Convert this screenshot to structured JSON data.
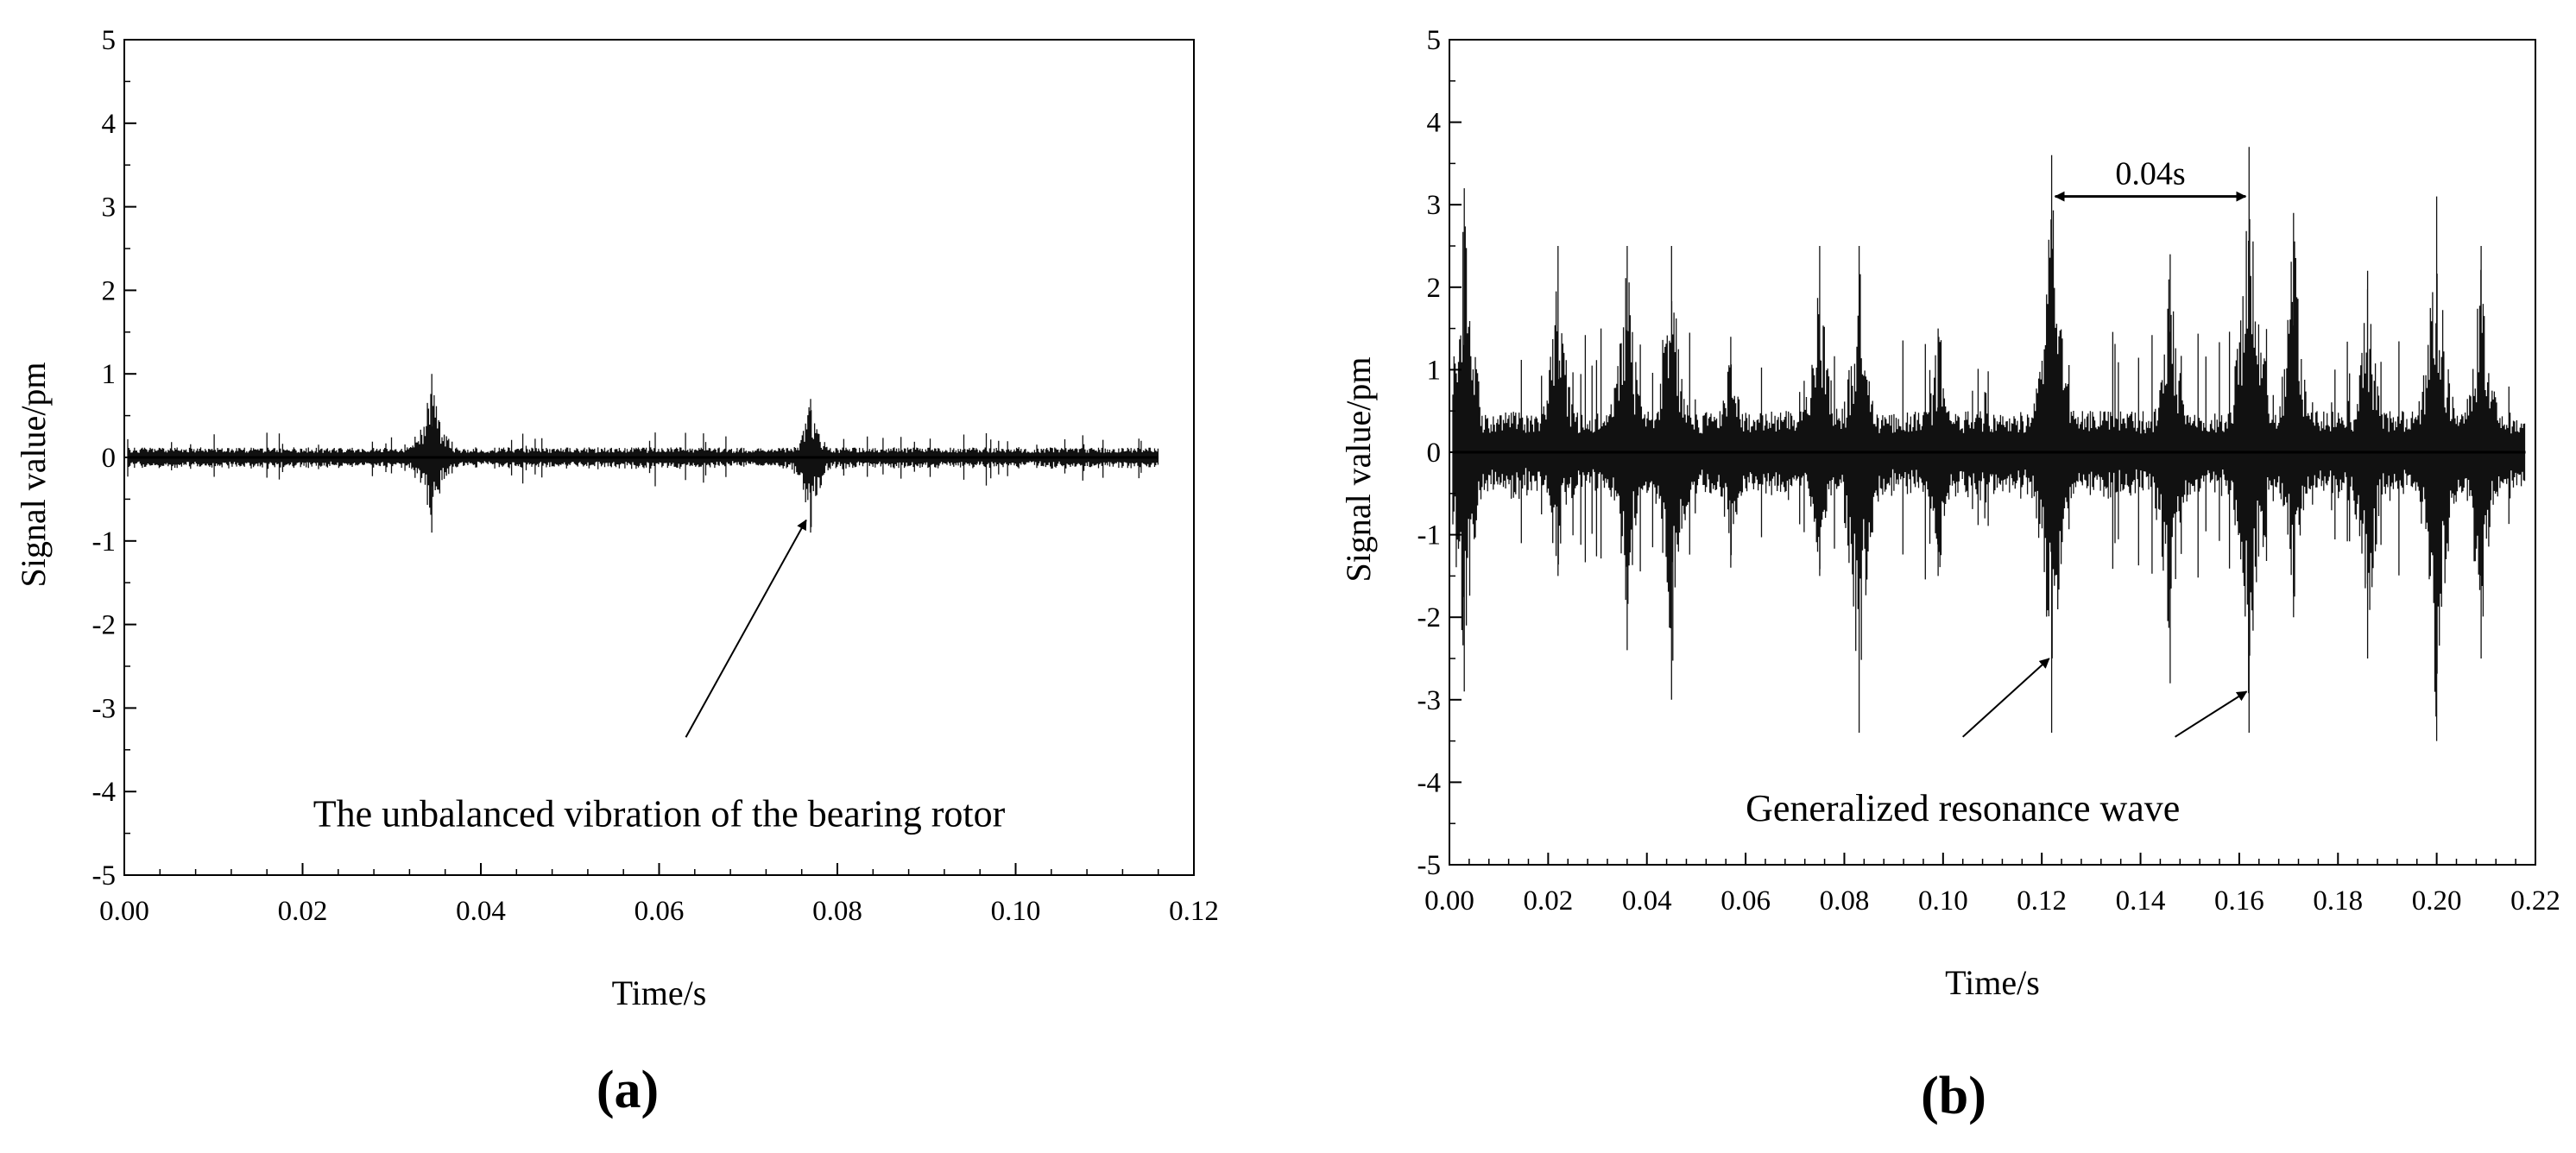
{
  "chart_data": [
    {
      "type": "line",
      "panel_label": "(a)",
      "xlabel": "Time/s",
      "ylabel": "Signal value/pm",
      "xlim": [
        0.0,
        0.12
      ],
      "ylim": [
        -5,
        5
      ],
      "x_ticks": [
        "0.00",
        "0.02",
        "0.04",
        "0.06",
        "0.08",
        "0.10",
        "0.12"
      ],
      "y_ticks": [
        "5",
        "4",
        "3",
        "2",
        "1",
        "0",
        "-1",
        "-2",
        "-3",
        "-4",
        "-5"
      ],
      "grid": false,
      "signal": {
        "t_end": 0.116,
        "base_amplitude": 0.12,
        "burst_amplitude": 0.3,
        "peaks": [
          {
            "t": 0.0345,
            "max": 1.0,
            "min": -0.9
          },
          {
            "t": 0.077,
            "max": 0.7,
            "min": -0.9
          }
        ]
      },
      "annotations": [
        {
          "text": "The unbalanced vibration of the bearing rotor",
          "text_x": 0.06,
          "text_y": -4.25,
          "arrow_from": [
            0.063,
            -3.35
          ],
          "arrow_to": [
            0.0765,
            -0.75
          ]
        }
      ]
    },
    {
      "type": "line",
      "panel_label": "(b)",
      "xlabel": "Time/s",
      "ylabel": "Signal value/pm",
      "xlim": [
        0.0,
        0.22
      ],
      "ylim": [
        -5,
        5
      ],
      "x_ticks": [
        "0.00",
        "0.02",
        "0.04",
        "0.06",
        "0.08",
        "0.10",
        "0.12",
        "0.14",
        "0.16",
        "0.18",
        "0.20",
        "0.22"
      ],
      "y_ticks": [
        "5",
        "4",
        "3",
        "2",
        "1",
        "0",
        "-1",
        "-2",
        "-3",
        "-4",
        "-5"
      ],
      "grid": false,
      "signal": {
        "t_end": 0.218,
        "base_amplitude": 0.5,
        "burst_amplitude": 1.5,
        "peaks": [
          {
            "t": 0.003,
            "max": 3.2,
            "min": -2.9
          },
          {
            "t": 0.022,
            "max": 2.5,
            "min": -1.5
          },
          {
            "t": 0.036,
            "max": 2.5,
            "min": -2.4
          },
          {
            "t": 0.045,
            "max": 2.5,
            "min": -3.0
          },
          {
            "t": 0.057,
            "max": 1.4,
            "min": -1.4
          },
          {
            "t": 0.075,
            "max": 2.5,
            "min": -1.5
          },
          {
            "t": 0.083,
            "max": 2.5,
            "min": -3.4
          },
          {
            "t": 0.099,
            "max": 1.5,
            "min": -1.5
          },
          {
            "t": 0.122,
            "max": 3.6,
            "min": -3.4
          },
          {
            "t": 0.146,
            "max": 2.4,
            "min": -2.8
          },
          {
            "t": 0.162,
            "max": 3.7,
            "min": -3.4
          },
          {
            "t": 0.171,
            "max": 2.9,
            "min": -2.0
          },
          {
            "t": 0.186,
            "max": 2.2,
            "min": -2.5
          },
          {
            "t": 0.2,
            "max": 3.1,
            "min": -3.5
          },
          {
            "t": 0.209,
            "max": 2.5,
            "min": -2.5
          }
        ]
      },
      "annotations": [
        {
          "text": "Generalized resonance wave",
          "text_x": 0.104,
          "text_y": -4.3,
          "arrows": [
            {
              "from": [
                0.104,
                -3.45
              ],
              "to": [
                0.1215,
                -2.5
              ]
            },
            {
              "from": [
                0.147,
                -3.45
              ],
              "to": [
                0.1615,
                -2.9
              ]
            }
          ]
        },
        {
          "text": "0.04s",
          "text_x": 0.142,
          "text_y": 3.35,
          "double_arrow": {
            "x1": 0.122,
            "x2": 0.162,
            "y": 3.1
          }
        }
      ]
    }
  ]
}
